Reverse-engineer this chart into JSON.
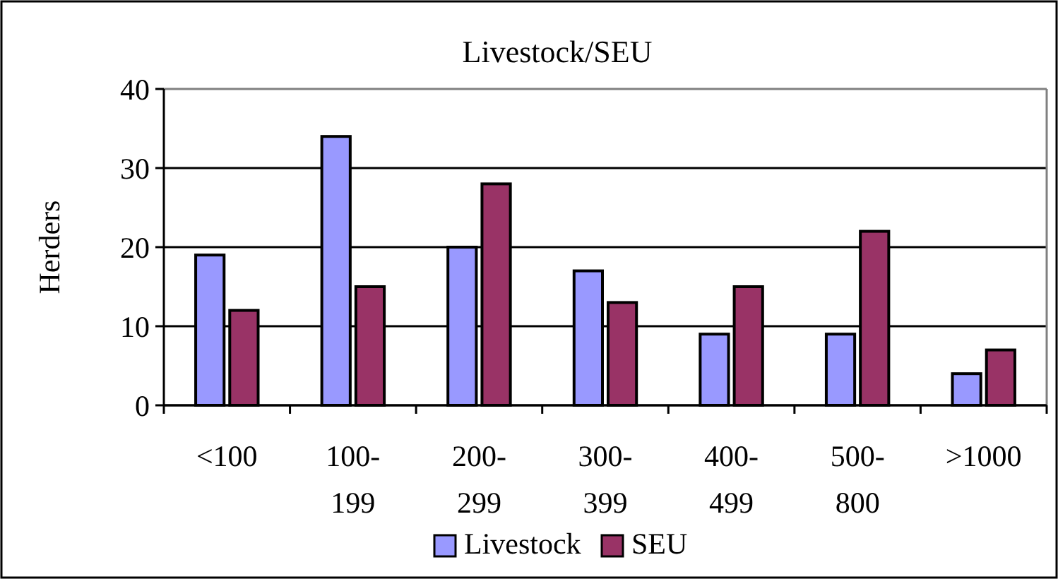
{
  "chart_data": {
    "type": "bar",
    "title": "Livestock/SEU",
    "ylabel": "Herders",
    "categories": [
      "<100",
      "100-199",
      "200-299",
      "300-399",
      "400-499",
      "500-800",
      ">1000"
    ],
    "series": [
      {
        "name": "Livestock",
        "color": "#9999ff",
        "values": [
          19,
          34,
          20,
          17,
          9,
          9,
          4
        ]
      },
      {
        "name": "SEU",
        "color": "#993366",
        "values": [
          12,
          15,
          28,
          13,
          15,
          22,
          7
        ]
      }
    ],
    "ylim": [
      0,
      40
    ],
    "yticks": [
      0,
      10,
      20,
      30,
      40
    ],
    "grid": "y",
    "legend": "bottom"
  }
}
